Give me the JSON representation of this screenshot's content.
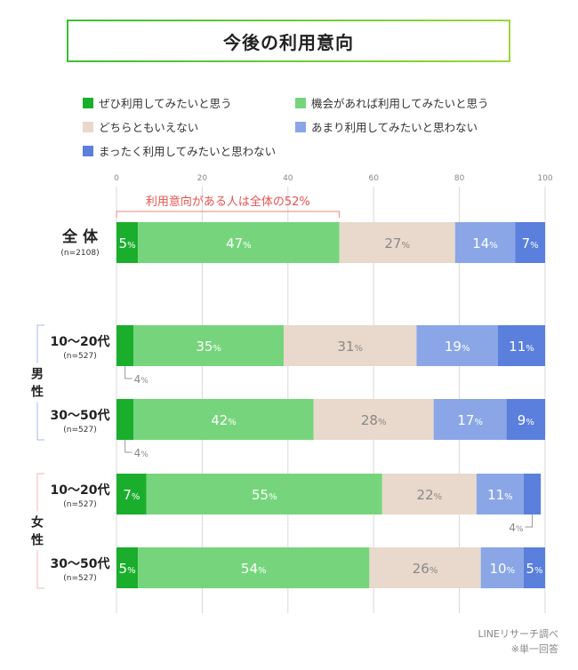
{
  "title": "今後の利用意向",
  "legend": [
    {
      "label": "ぜひ利用してみたいと思う",
      "color": "#1aae2c"
    },
    {
      "label": "機会があれば利用してみたいと思う",
      "color": "#76d57c"
    },
    {
      "label": "どちらともいえない",
      "color": "#e8d9cc"
    },
    {
      "label": "あまり利用してみたいと思わない",
      "color": "#8aa6e6"
    },
    {
      "label": "まったく利用してみたいと思わない",
      "color": "#5a7fdc"
    }
  ],
  "chart_data": {
    "type": "bar",
    "orientation": "horizontal-stacked-100",
    "xlim": [
      0,
      100
    ],
    "xticks": [
      "0",
      "20",
      "40",
      "60",
      "80",
      "100"
    ],
    "series_names": [
      "ぜひ利用してみたいと思う",
      "機会があれば利用してみたいと思う",
      "どちらともいえない",
      "あまり利用してみたいと思わない",
      "まったく利用してみたいと思わない"
    ],
    "rows": [
      {
        "label": "全 体",
        "n": "(n=2108)",
        "values": [
          5,
          47,
          27,
          14,
          7
        ]
      },
      {
        "label": "10〜20代",
        "n": "(n=527)",
        "values": [
          4,
          35,
          31,
          19,
          11
        ]
      },
      {
        "label": "30〜50代",
        "n": "(n=527)",
        "values": [
          4,
          42,
          28,
          17,
          9
        ]
      },
      {
        "label": "10〜20代",
        "n": "(n=527)",
        "values": [
          7,
          55,
          22,
          11,
          4
        ]
      },
      {
        "label": "30〜50代",
        "n": "(n=527)",
        "values": [
          5,
          54,
          26,
          10,
          5
        ]
      }
    ],
    "groups": [
      {
        "label": "男\n性",
        "rows": [
          1,
          2
        ]
      },
      {
        "label": "女\n性",
        "rows": [
          3,
          4
        ]
      }
    ],
    "annotation": "利用意向がある人は全体の52%",
    "unit": "%"
  },
  "source": "LINEリサーチ調べ",
  "note": "※単一回答"
}
